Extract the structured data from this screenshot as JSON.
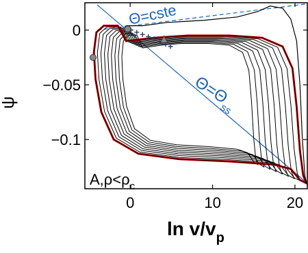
{
  "chart_data": {
    "type": "line",
    "xlabel": "ln v/v",
    "xlabel_sub": "p",
    "ylabel": "ψ",
    "xlim": [
      -5.5,
      21.5
    ],
    "ylim": [
      -0.145,
      0.025
    ],
    "x_ticks": [
      0,
      10,
      20
    ],
    "x_tick_labels": [
      "0",
      "10",
      "20"
    ],
    "y_ticks": [
      0,
      -0.05,
      -0.1
    ],
    "y_tick_labels": [
      "0",
      "−0.05",
      "−0.1"
    ],
    "grid": false,
    "panel_label": "A,ρ<ρ",
    "panel_label_sub": "c",
    "annotations": [
      {
        "text": "Θ=cste",
        "color": "#1a63b5"
      },
      {
        "text": "Θ=Θ",
        "sub": "ss",
        "color": "#1a63b5"
      }
    ],
    "colors": {
      "curves": "#000000",
      "limit_cycle": "#cc0000",
      "lines": "#1a63b5",
      "markers": "#2b3a6b"
    },
    "reference_lines": [
      {
        "name": "theta-steady-state-line",
        "style": "solid",
        "points": [
          [
            -4,
            0.023
          ],
          [
            21.5,
            -0.14
          ]
        ]
      },
      {
        "name": "theta-constant-line",
        "style": "dashed",
        "points": [
          [
            -4,
            0.0
          ],
          [
            21.5,
            0.024
          ]
        ]
      }
    ],
    "limit_cycle": [
      [
        -0.5,
        -0.01
      ],
      [
        3,
        -0.007
      ],
      [
        7,
        -0.005
      ],
      [
        12,
        -0.005
      ],
      [
        16,
        -0.007
      ],
      [
        18.5,
        -0.015
      ],
      [
        19.7,
        -0.035
      ],
      [
        20.2,
        -0.07
      ],
      [
        20.6,
        -0.11
      ],
      [
        21.0,
        -0.133
      ],
      [
        21.4,
        -0.14
      ],
      [
        20.6,
        -0.137
      ],
      [
        19.5,
        -0.127
      ],
      [
        17.5,
        -0.123
      ],
      [
        12,
        -0.12
      ],
      [
        6,
        -0.118
      ],
      [
        1,
        -0.113
      ],
      [
        -2,
        -0.1
      ],
      [
        -3.5,
        -0.075
      ],
      [
        -4.2,
        -0.045
      ],
      [
        -4.4,
        -0.02
      ],
      [
        -4.1,
        -0.002
      ],
      [
        -3.2,
        0.004
      ],
      [
        -1.5,
        0.004
      ],
      [
        -0.5,
        -0.01
      ]
    ],
    "transient_curve": [
      [
        -0.5,
        0.004
      ],
      [
        1.5,
        0.004
      ],
      [
        4.5,
        0.007
      ],
      [
        9,
        0.009
      ],
      [
        13,
        0.012
      ],
      [
        15.5,
        0.017
      ],
      [
        17,
        0.022
      ],
      [
        18.5,
        0.02
      ],
      [
        19.5,
        0.01
      ],
      [
        20.2,
        -0.01
      ],
      [
        20.6,
        -0.05
      ],
      [
        20.9,
        -0.1
      ],
      [
        21.2,
        -0.133
      ],
      [
        21.4,
        -0.14
      ]
    ],
    "inner_loops": [
      {
        "s": 0.955
      },
      {
        "s": 0.91
      },
      {
        "s": 0.865
      },
      {
        "s": 0.82
      },
      {
        "s": 0.775
      },
      {
        "s": 0.73
      },
      {
        "s": 0.685
      },
      {
        "s": 0.64
      }
    ],
    "cross_markers": [
      [
        -0.6,
        0.002
      ],
      [
        0.1,
        0.0
      ],
      [
        0.8,
        -0.002
      ],
      [
        1.5,
        -0.004
      ],
      [
        2.2,
        -0.006
      ],
      [
        2.9,
        -0.008
      ],
      [
        3.6,
        -0.011
      ],
      [
        4.3,
        -0.013
      ],
      [
        4.9,
        -0.015
      ]
    ],
    "circle_markers": [
      [
        -4.5,
        -0.025
      ],
      [
        -0.3,
        0.001
      ]
    ],
    "triangle_marker": [
      4.1,
      -0.009
    ]
  }
}
